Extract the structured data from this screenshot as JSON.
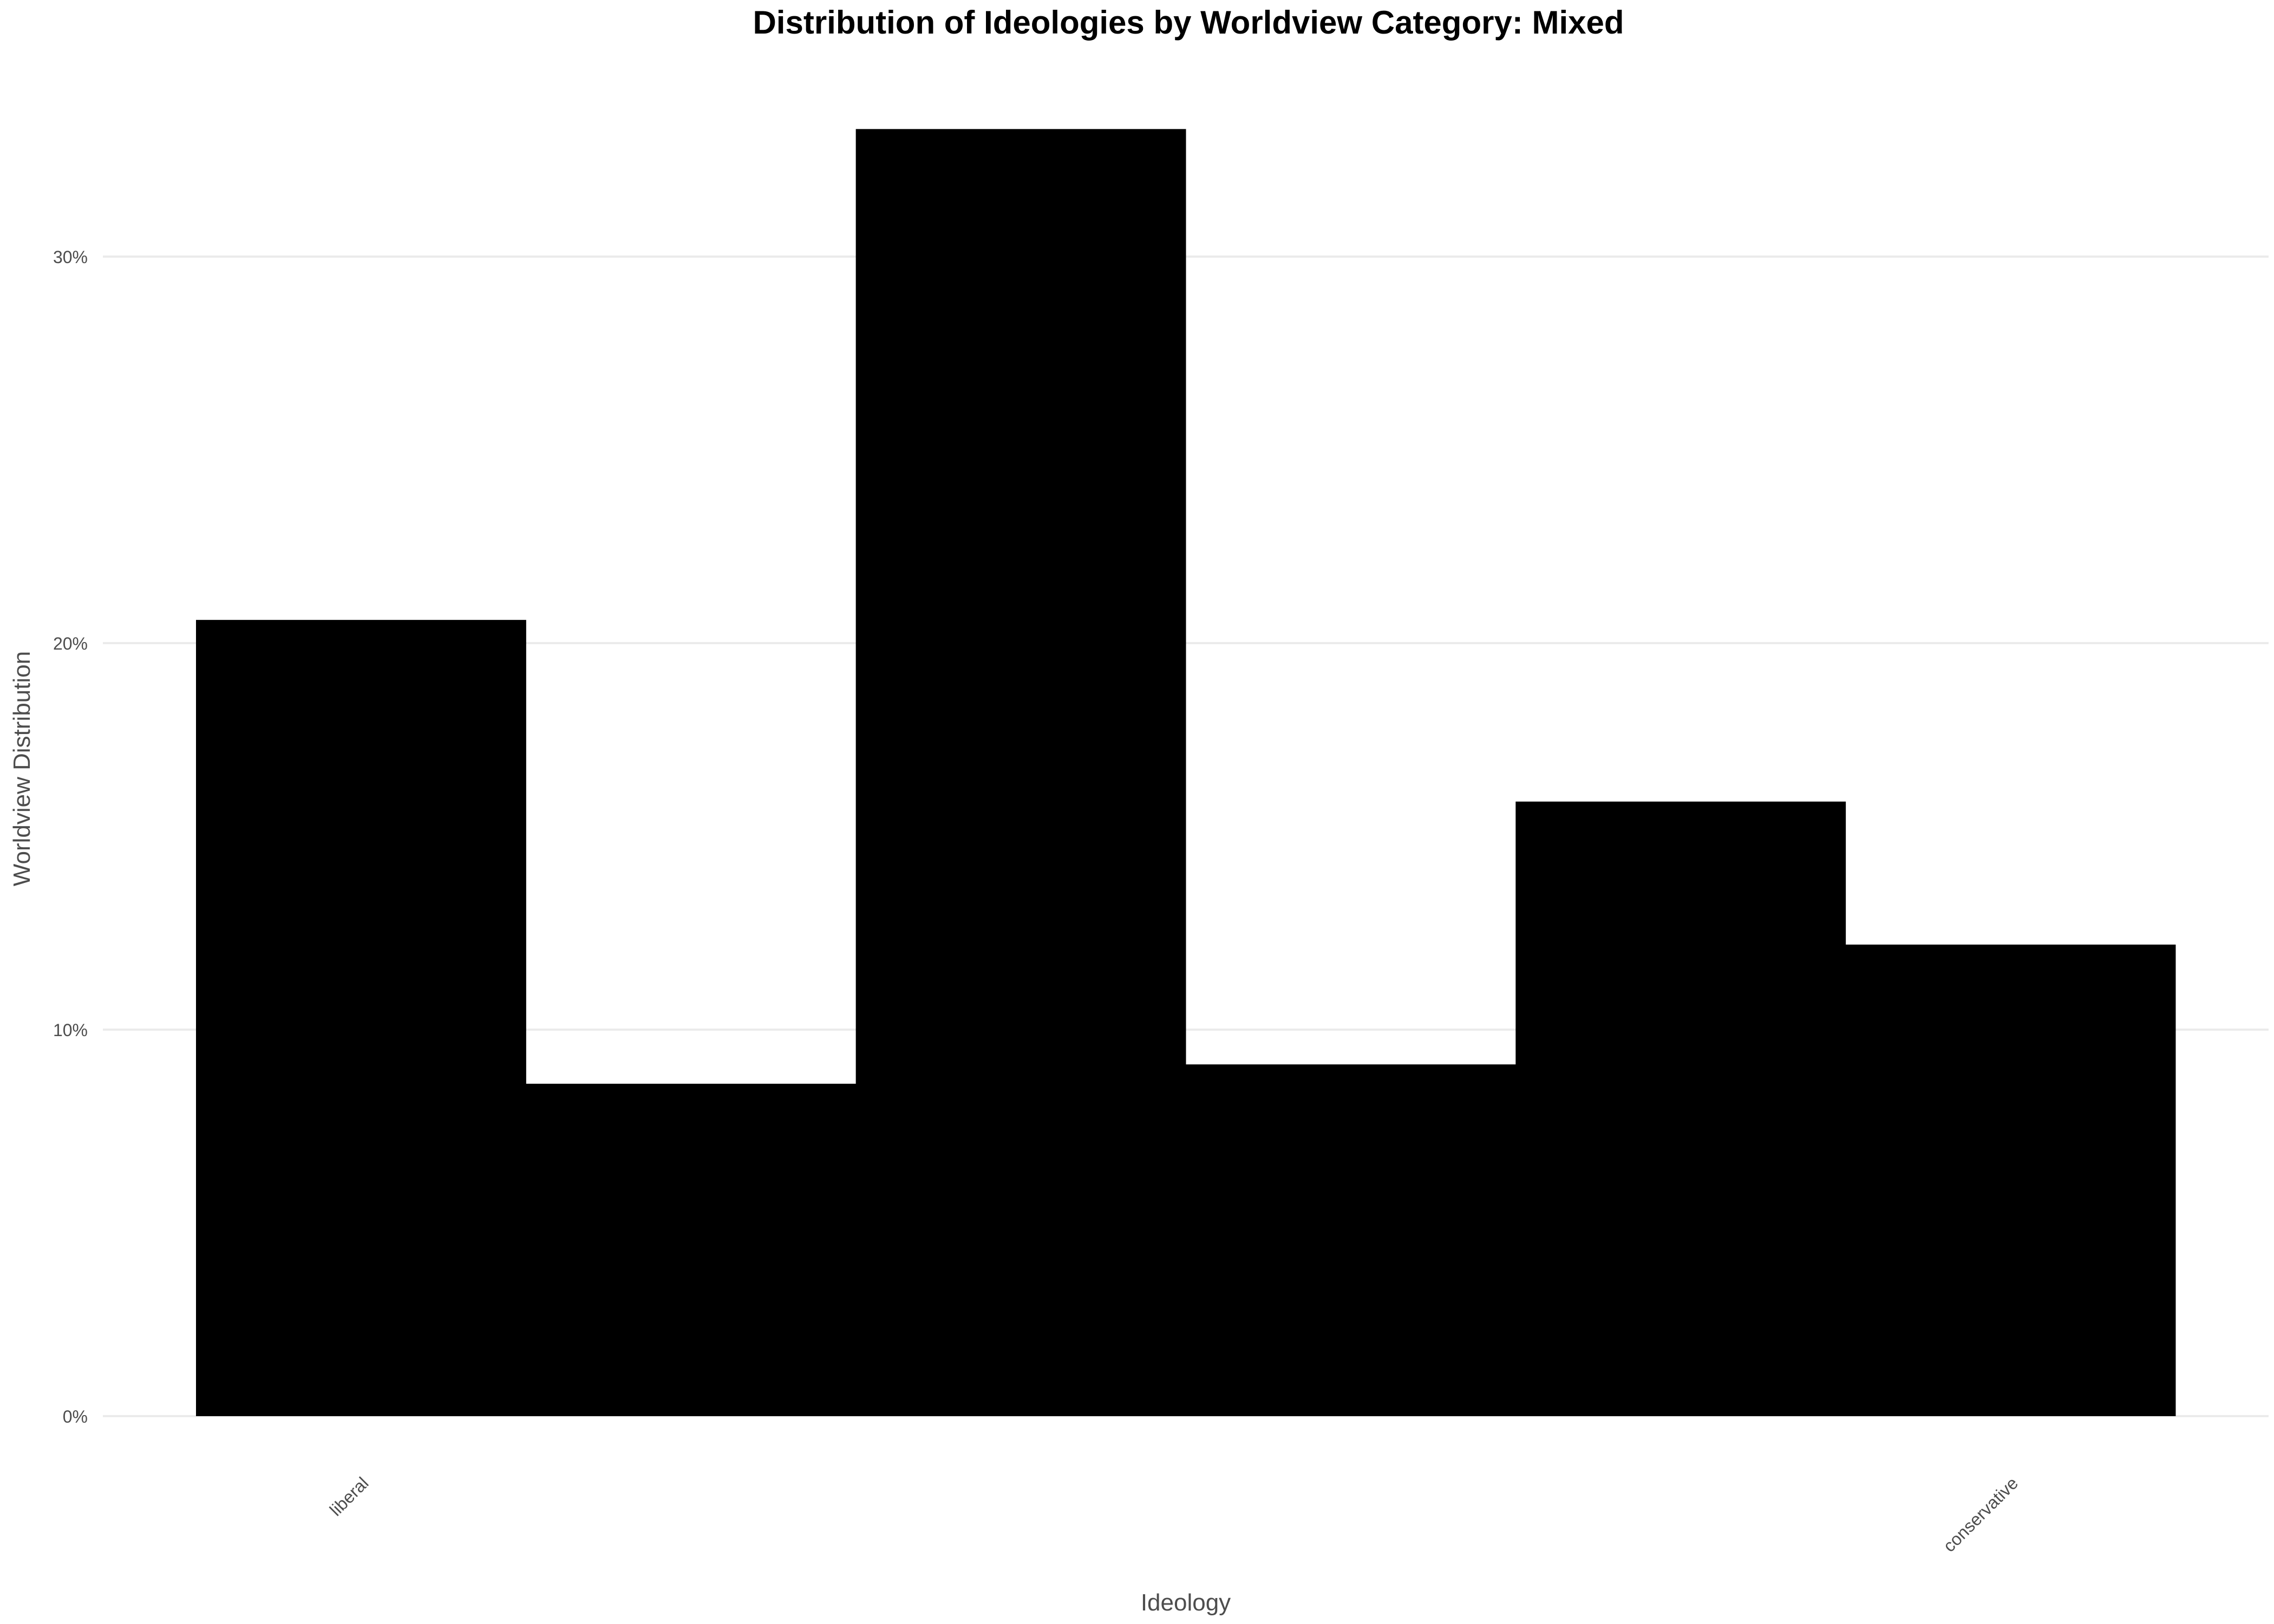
{
  "chart_data": {
    "type": "bar",
    "title": "Distribution of Ideologies by Worldview Category: Mixed",
    "xlabel": "Ideology",
    "ylabel": "Worldview Distribution",
    "categories": [
      "1",
      "2",
      "3",
      "4",
      "5",
      "6"
    ],
    "values": [
      0.206,
      0.086,
      0.333,
      0.091,
      0.159,
      0.122
    ],
    "x_tick_labels": [
      {
        "text": "liberal",
        "at": 1
      },
      {
        "text": "conservative",
        "at": 6
      }
    ],
    "ylim": [
      0,
      0.345
    ],
    "y_ticks": [
      0,
      0.1,
      0.2,
      0.3
    ],
    "y_tick_labels": [
      "0%",
      "10%",
      "20%",
      "30%"
    ],
    "bar_color": "#000000",
    "grid": true,
    "grid_color": "#ebebeb",
    "legend": "none"
  }
}
